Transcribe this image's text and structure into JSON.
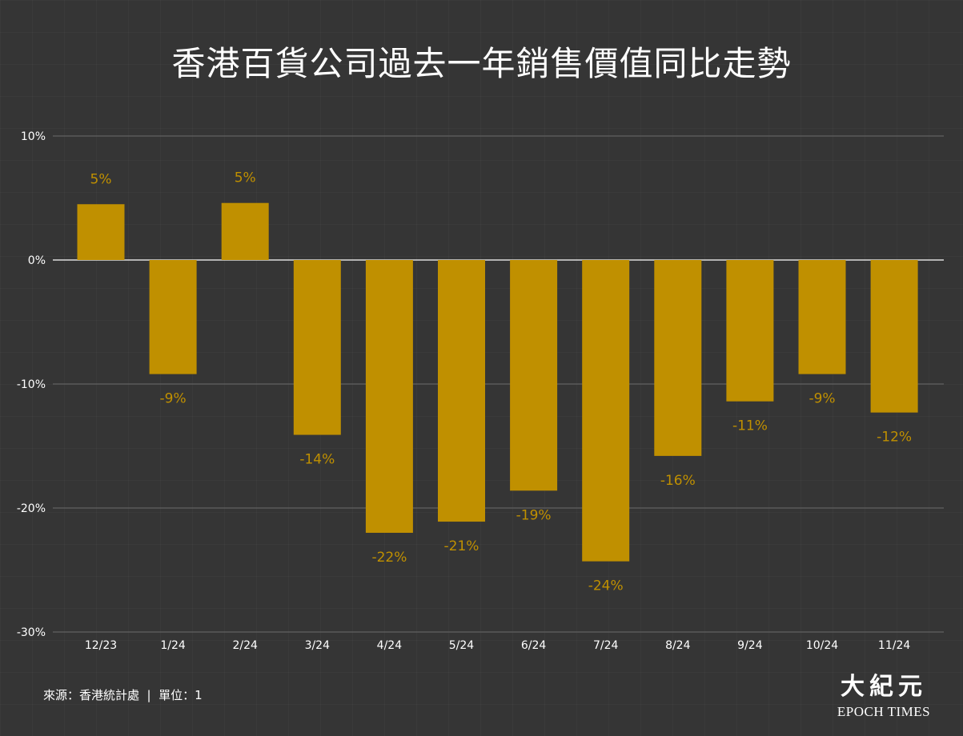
{
  "title": "香港百貨公司過去一年銷售價值同比走勢",
  "footer": {
    "source": "來源：香港統計處  |  單位：1"
  },
  "logo": {
    "cn": "大紀元",
    "en": "EPOCH TIMES"
  },
  "colors": {
    "background": "#353535",
    "bar": "#c09000",
    "label": "#c09000",
    "text": "#ffffff",
    "gridline": "#6a6a6a"
  },
  "chart_data": {
    "type": "bar",
    "title": "香港百貨公司過去一年銷售價值同比走勢",
    "xlabel": "",
    "ylabel": "",
    "ylim": [
      -30,
      10
    ],
    "yticks": [
      10,
      0,
      -10,
      -20,
      -30
    ],
    "ytick_labels": [
      "10%",
      "0%",
      "-10%",
      "-20%",
      "-30%"
    ],
    "grid": true,
    "categories": [
      "12/23",
      "1/24",
      "2/24",
      "3/24",
      "4/24",
      "5/24",
      "6/24",
      "7/24",
      "8/24",
      "9/24",
      "10/24",
      "11/24"
    ],
    "values": [
      4.5,
      -9.2,
      4.6,
      -14.1,
      -22.0,
      -21.1,
      -18.6,
      -24.3,
      -15.8,
      -11.4,
      -9.2,
      -12.3
    ],
    "data_labels": [
      "5%",
      "-9%",
      "5%",
      "-14%",
      "-22%",
      "-21%",
      "-19%",
      "-24%",
      "-16%",
      "-11%",
      "-9%",
      "-12%"
    ]
  }
}
